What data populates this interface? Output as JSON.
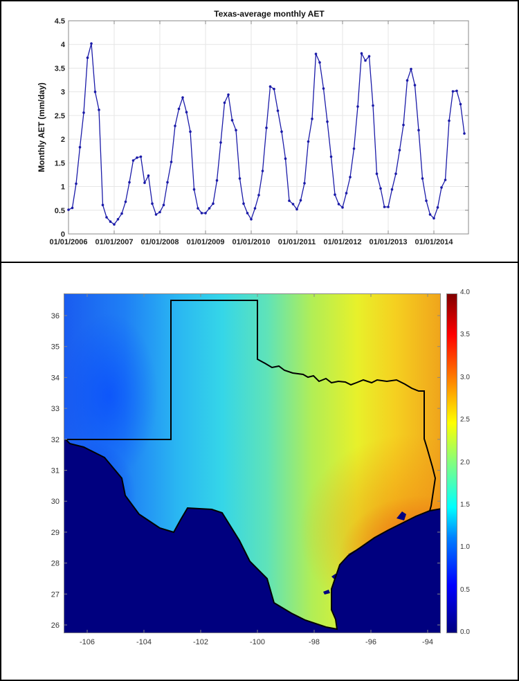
{
  "top_panel": {
    "title": "Texas-average monthly AET",
    "ylabel": "Monthly AET (mm/day)",
    "yticks": [
      "0",
      "0.5",
      "1",
      "1.5",
      "2",
      "2.5",
      "3",
      "3.5",
      "4",
      "4.5"
    ],
    "xticks": [
      "01/01/2006",
      "01/01/2007",
      "01/01/2008",
      "01/01/2009",
      "01/01/2010",
      "01/01/2011",
      "01/01/2012",
      "01/01/2013",
      "01/01/2014"
    ],
    "line_color": "#1a1aa8"
  },
  "bottom_panel": {
    "yticks": [
      "36",
      "35",
      "34",
      "33",
      "32",
      "31",
      "30",
      "29",
      "28",
      "27",
      "26"
    ],
    "xticks": [
      "-106",
      "-104",
      "-102",
      "-100",
      "-98",
      "-96",
      "-94"
    ],
    "colorbar": {
      "ticks": [
        "4.0",
        "3.5",
        "3.0",
        "2.5",
        "2.0",
        "1.5",
        "1.0",
        "0.5",
        "0.0"
      ],
      "colormap": "jet",
      "min": 0.0,
      "max": 4.0
    },
    "ocean_color": "#00007f",
    "border_color": "#000000"
  },
  "chart_data": [
    {
      "type": "line",
      "title": "Texas-average monthly AET",
      "xlabel": "",
      "ylabel": "Monthly AET (mm/day)",
      "ylim": [
        0,
        4.5
      ],
      "grid": true,
      "x_start": "01/01/2006",
      "x_end": "09/01/2014",
      "x_frequency": "monthly",
      "xtick_labels": [
        "01/01/2006",
        "01/01/2007",
        "01/01/2008",
        "01/01/2009",
        "01/01/2010",
        "01/01/2011",
        "01/01/2012",
        "01/01/2013",
        "01/01/2014"
      ],
      "series": [
        {
          "name": "Texas-average monthly AET",
          "marker": "dot",
          "color": "#1a1aa8",
          "values": [
            0.51,
            0.55,
            1.06,
            1.83,
            2.56,
            3.72,
            4.02,
            3.0,
            2.62,
            0.61,
            0.35,
            0.26,
            0.2,
            0.31,
            0.43,
            0.68,
            1.09,
            1.55,
            1.61,
            1.63,
            1.08,
            1.23,
            0.64,
            0.41,
            0.46,
            0.61,
            1.09,
            1.52,
            2.28,
            2.64,
            2.88,
            2.57,
            2.16,
            0.94,
            0.54,
            0.44,
            0.44,
            0.54,
            0.64,
            1.13,
            1.93,
            2.77,
            2.94,
            2.4,
            2.19,
            1.17,
            0.64,
            0.44,
            0.31,
            0.54,
            0.82,
            1.33,
            2.24,
            3.11,
            3.06,
            2.6,
            2.16,
            1.59,
            0.7,
            0.63,
            0.52,
            0.71,
            1.07,
            1.95,
            2.43,
            3.8,
            3.62,
            3.07,
            2.37,
            1.63,
            0.83,
            0.63,
            0.56,
            0.86,
            1.2,
            1.8,
            2.69,
            3.81,
            3.66,
            3.75,
            2.71,
            1.27,
            0.96,
            0.57,
            0.57,
            0.94,
            1.27,
            1.77,
            2.3,
            3.24,
            3.48,
            3.14,
            2.19,
            1.17,
            0.7,
            0.41,
            0.33,
            0.56,
            0.98,
            1.14,
            2.39,
            3.01,
            3.02,
            2.74,
            2.12
          ]
        }
      ]
    },
    {
      "type": "heatmap",
      "title": "",
      "xlabel": "",
      "ylabel": "",
      "xlim": [
        -106.8,
        -93.5
      ],
      "ylim": [
        25.7,
        36.7
      ],
      "xtick_labels": [
        "-106",
        "-104",
        "-102",
        "-100",
        "-98",
        "-96",
        "-94"
      ],
      "ytick_labels": [
        "26",
        "27",
        "28",
        "29",
        "30",
        "31",
        "32",
        "33",
        "34",
        "35",
        "36"
      ],
      "colorbar": {
        "min": 0.0,
        "max": 4.0,
        "ticks": [
          "0.0",
          "0.5",
          "1.0",
          "1.5",
          "2.0",
          "2.5",
          "3.0",
          "3.5",
          "4.0"
        ],
        "colormap": "jet"
      },
      "description_of_pattern": "Low AET (~0.5-1.0) in far west Texas / New Mexico, increasing eastward to ~2.5-3.2 in east/southeast Texas; Gulf and Mexico masked at 0"
    }
  ]
}
